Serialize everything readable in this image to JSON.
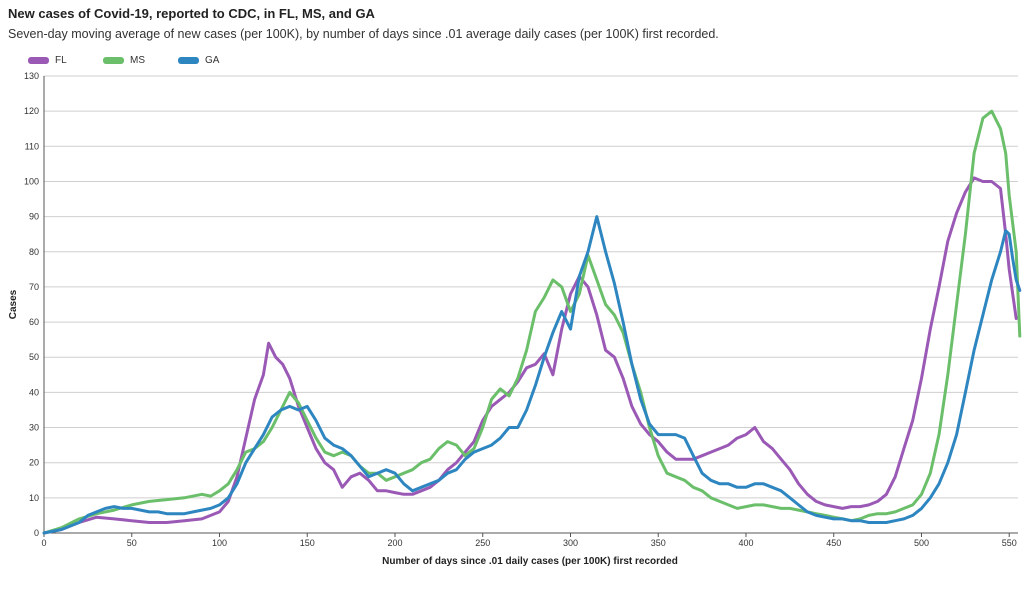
{
  "chart_data": {
    "type": "line",
    "title": "New cases of Covid-19, reported to CDC, in FL, MS, and GA",
    "subtitle": "Seven-day moving average of new cases (per 100K), by number of days since .01 average daily cases (per 100K) first recorded.",
    "xlabel": "Number of days since .01 daily cases (per 100K) first recorded",
    "ylabel": "Cases",
    "xlim": [
      0,
      555
    ],
    "ylim": [
      0,
      130
    ],
    "x_ticks": [
      0,
      50,
      100,
      150,
      200,
      250,
      300,
      350,
      400,
      450,
      500,
      550
    ],
    "y_ticks": [
      0,
      10,
      20,
      30,
      40,
      50,
      60,
      70,
      80,
      90,
      100,
      110,
      120,
      130
    ],
    "grid": "horizontal",
    "legend_position": "top-left",
    "series": [
      {
        "name": "FL",
        "color": "#9b59b6",
        "points": [
          [
            0,
            0
          ],
          [
            10,
            1
          ],
          [
            20,
            3
          ],
          [
            30,
            4.5
          ],
          [
            40,
            4
          ],
          [
            50,
            3.5
          ],
          [
            60,
            3
          ],
          [
            70,
            3
          ],
          [
            80,
            3.5
          ],
          [
            90,
            4
          ],
          [
            100,
            6
          ],
          [
            105,
            9
          ],
          [
            110,
            16
          ],
          [
            115,
            27
          ],
          [
            120,
            38
          ],
          [
            125,
            45
          ],
          [
            128,
            54
          ],
          [
            132,
            50
          ],
          [
            136,
            48
          ],
          [
            140,
            44
          ],
          [
            145,
            36
          ],
          [
            150,
            30
          ],
          [
            155,
            24
          ],
          [
            160,
            20
          ],
          [
            165,
            18
          ],
          [
            170,
            13
          ],
          [
            175,
            16
          ],
          [
            180,
            17
          ],
          [
            185,
            15
          ],
          [
            190,
            12
          ],
          [
            195,
            12
          ],
          [
            200,
            11.5
          ],
          [
            205,
            11
          ],
          [
            210,
            11
          ],
          [
            215,
            12
          ],
          [
            220,
            13
          ],
          [
            225,
            15
          ],
          [
            230,
            18
          ],
          [
            235,
            20
          ],
          [
            240,
            23
          ],
          [
            245,
            26
          ],
          [
            250,
            32
          ],
          [
            255,
            36
          ],
          [
            260,
            38
          ],
          [
            265,
            40
          ],
          [
            270,
            43
          ],
          [
            275,
            47
          ],
          [
            280,
            48
          ],
          [
            285,
            51
          ],
          [
            290,
            45
          ],
          [
            295,
            58
          ],
          [
            300,
            68
          ],
          [
            305,
            73
          ],
          [
            310,
            70
          ],
          [
            315,
            62
          ],
          [
            320,
            52
          ],
          [
            325,
            50
          ],
          [
            330,
            44
          ],
          [
            335,
            36
          ],
          [
            340,
            31
          ],
          [
            345,
            28
          ],
          [
            350,
            26
          ],
          [
            355,
            23
          ],
          [
            360,
            21
          ],
          [
            365,
            21
          ],
          [
            370,
            21
          ],
          [
            375,
            22
          ],
          [
            380,
            23
          ],
          [
            385,
            24
          ],
          [
            390,
            25
          ],
          [
            395,
            27
          ],
          [
            400,
            28
          ],
          [
            405,
            30
          ],
          [
            410,
            26
          ],
          [
            415,
            24
          ],
          [
            420,
            21
          ],
          [
            425,
            18
          ],
          [
            430,
            14
          ],
          [
            435,
            11
          ],
          [
            440,
            9
          ],
          [
            445,
            8
          ],
          [
            450,
            7.5
          ],
          [
            455,
            7
          ],
          [
            460,
            7.5
          ],
          [
            465,
            7.5
          ],
          [
            470,
            8
          ],
          [
            475,
            9
          ],
          [
            480,
            11
          ],
          [
            485,
            16
          ],
          [
            490,
            24
          ],
          [
            495,
            32
          ],
          [
            500,
            44
          ],
          [
            505,
            58
          ],
          [
            510,
            70
          ],
          [
            515,
            83
          ],
          [
            520,
            91
          ],
          [
            525,
            97
          ],
          [
            530,
            101
          ],
          [
            535,
            100
          ],
          [
            540,
            100
          ],
          [
            545,
            98
          ],
          [
            548,
            85
          ],
          [
            550,
            75
          ],
          [
            552,
            68
          ],
          [
            554,
            61
          ]
        ]
      },
      {
        "name": "MS",
        "color": "#6bbf6b",
        "points": [
          [
            0,
            0
          ],
          [
            10,
            1.5
          ],
          [
            20,
            4
          ],
          [
            30,
            5.5
          ],
          [
            40,
            6.5
          ],
          [
            50,
            8
          ],
          [
            60,
            9
          ],
          [
            70,
            9.5
          ],
          [
            80,
            10
          ],
          [
            90,
            11
          ],
          [
            95,
            10.5
          ],
          [
            100,
            12
          ],
          [
            105,
            14
          ],
          [
            110,
            18
          ],
          [
            115,
            23
          ],
          [
            120,
            24
          ],
          [
            125,
            26
          ],
          [
            130,
            30
          ],
          [
            135,
            35
          ],
          [
            140,
            40
          ],
          [
            145,
            37
          ],
          [
            150,
            32
          ],
          [
            155,
            27
          ],
          [
            160,
            23
          ],
          [
            165,
            22
          ],
          [
            170,
            23
          ],
          [
            175,
            22
          ],
          [
            180,
            19
          ],
          [
            185,
            17
          ],
          [
            190,
            17
          ],
          [
            195,
            15
          ],
          [
            200,
            16
          ],
          [
            205,
            17
          ],
          [
            210,
            18
          ],
          [
            215,
            20
          ],
          [
            220,
            21
          ],
          [
            225,
            24
          ],
          [
            230,
            26
          ],
          [
            235,
            25
          ],
          [
            240,
            22
          ],
          [
            245,
            24
          ],
          [
            250,
            30
          ],
          [
            255,
            38
          ],
          [
            260,
            41
          ],
          [
            265,
            39
          ],
          [
            270,
            44
          ],
          [
            275,
            52
          ],
          [
            280,
            63
          ],
          [
            285,
            67
          ],
          [
            290,
            72
          ],
          [
            295,
            70
          ],
          [
            300,
            63
          ],
          [
            305,
            68
          ],
          [
            310,
            79
          ],
          [
            315,
            72
          ],
          [
            320,
            65
          ],
          [
            325,
            62
          ],
          [
            330,
            57
          ],
          [
            335,
            48
          ],
          [
            340,
            40
          ],
          [
            345,
            30
          ],
          [
            350,
            22
          ],
          [
            355,
            17
          ],
          [
            360,
            16
          ],
          [
            365,
            15
          ],
          [
            370,
            13
          ],
          [
            375,
            12
          ],
          [
            380,
            10
          ],
          [
            385,
            9
          ],
          [
            390,
            8
          ],
          [
            395,
            7
          ],
          [
            400,
            7.5
          ],
          [
            405,
            8
          ],
          [
            410,
            8
          ],
          [
            415,
            7.5
          ],
          [
            420,
            7
          ],
          [
            425,
            7
          ],
          [
            430,
            6.5
          ],
          [
            435,
            6
          ],
          [
            440,
            5.5
          ],
          [
            445,
            5
          ],
          [
            450,
            4.5
          ],
          [
            455,
            4
          ],
          [
            460,
            3.5
          ],
          [
            465,
            4
          ],
          [
            470,
            5
          ],
          [
            475,
            5.5
          ],
          [
            480,
            5.5
          ],
          [
            485,
            6
          ],
          [
            490,
            7
          ],
          [
            495,
            8
          ],
          [
            500,
            11
          ],
          [
            505,
            17
          ],
          [
            510,
            28
          ],
          [
            515,
            45
          ],
          [
            520,
            65
          ],
          [
            525,
            85
          ],
          [
            530,
            108
          ],
          [
            535,
            118
          ],
          [
            540,
            120
          ],
          [
            545,
            115
          ],
          [
            548,
            108
          ],
          [
            550,
            96
          ],
          [
            552,
            88
          ],
          [
            554,
            80
          ],
          [
            556,
            56
          ]
        ]
      },
      {
        "name": "GA",
        "color": "#2e86c1",
        "points": [
          [
            0,
            0
          ],
          [
            10,
            1
          ],
          [
            20,
            3
          ],
          [
            25,
            5
          ],
          [
            30,
            6
          ],
          [
            35,
            7
          ],
          [
            40,
            7.5
          ],
          [
            45,
            7
          ],
          [
            50,
            7
          ],
          [
            55,
            6.5
          ],
          [
            60,
            6
          ],
          [
            65,
            6
          ],
          [
            70,
            5.5
          ],
          [
            75,
            5.5
          ],
          [
            80,
            5.5
          ],
          [
            85,
            6
          ],
          [
            90,
            6.5
          ],
          [
            95,
            7
          ],
          [
            100,
            8
          ],
          [
            105,
            10
          ],
          [
            110,
            14
          ],
          [
            115,
            20
          ],
          [
            120,
            24
          ],
          [
            125,
            28
          ],
          [
            130,
            33
          ],
          [
            135,
            35
          ],
          [
            140,
            36
          ],
          [
            145,
            35
          ],
          [
            150,
            36
          ],
          [
            155,
            32
          ],
          [
            160,
            27
          ],
          [
            165,
            25
          ],
          [
            170,
            24
          ],
          [
            175,
            22
          ],
          [
            180,
            19
          ],
          [
            185,
            16
          ],
          [
            190,
            17
          ],
          [
            195,
            18
          ],
          [
            200,
            17
          ],
          [
            205,
            14
          ],
          [
            210,
            12
          ],
          [
            215,
            13
          ],
          [
            220,
            14
          ],
          [
            225,
            15
          ],
          [
            230,
            17
          ],
          [
            235,
            18
          ],
          [
            240,
            21
          ],
          [
            245,
            23
          ],
          [
            250,
            24
          ],
          [
            255,
            25
          ],
          [
            260,
            27
          ],
          [
            265,
            30
          ],
          [
            270,
            30
          ],
          [
            275,
            35
          ],
          [
            280,
            42
          ],
          [
            285,
            50
          ],
          [
            290,
            57
          ],
          [
            295,
            63
          ],
          [
            300,
            58
          ],
          [
            305,
            73
          ],
          [
            310,
            80
          ],
          [
            315,
            90
          ],
          [
            320,
            80
          ],
          [
            325,
            71
          ],
          [
            330,
            60
          ],
          [
            335,
            48
          ],
          [
            340,
            38
          ],
          [
            345,
            31
          ],
          [
            350,
            28
          ],
          [
            355,
            28
          ],
          [
            360,
            28
          ],
          [
            365,
            27
          ],
          [
            370,
            22
          ],
          [
            375,
            17
          ],
          [
            380,
            15
          ],
          [
            385,
            14
          ],
          [
            390,
            14
          ],
          [
            395,
            13
          ],
          [
            400,
            13
          ],
          [
            405,
            14
          ],
          [
            410,
            14
          ],
          [
            415,
            13
          ],
          [
            420,
            12
          ],
          [
            425,
            10
          ],
          [
            430,
            8
          ],
          [
            435,
            6
          ],
          [
            440,
            5
          ],
          [
            445,
            4.5
          ],
          [
            450,
            4
          ],
          [
            455,
            4
          ],
          [
            460,
            3.5
          ],
          [
            465,
            3.5
          ],
          [
            470,
            3
          ],
          [
            475,
            3
          ],
          [
            480,
            3
          ],
          [
            485,
            3.5
          ],
          [
            490,
            4
          ],
          [
            495,
            5
          ],
          [
            500,
            7
          ],
          [
            505,
            10
          ],
          [
            510,
            14
          ],
          [
            515,
            20
          ],
          [
            520,
            28
          ],
          [
            525,
            40
          ],
          [
            530,
            52
          ],
          [
            535,
            62
          ],
          [
            540,
            72
          ],
          [
            545,
            80
          ],
          [
            548,
            86
          ],
          [
            550,
            85
          ],
          [
            552,
            78
          ],
          [
            554,
            72
          ],
          [
            556,
            69
          ]
        ]
      }
    ]
  }
}
